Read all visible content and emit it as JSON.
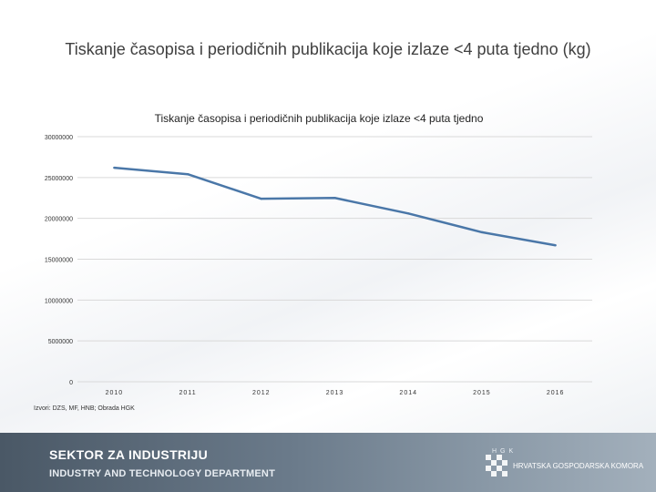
{
  "slide": {
    "title": "Tiskanje časopisa i periodičnih publikacija koje izlaze <4 puta tjedno (kg)",
    "source": "Izvori: DZS, MF, HNB; Obrada HGK"
  },
  "footer": {
    "line1": "SEKTOR ZA INDUSTRIJU",
    "line2": "INDUSTRY AND TECHNOLOGY DEPARTMENT",
    "logo_letters": "HGK",
    "logo_text": "HRVATSKA GOSPODARSKA KOMORA"
  },
  "colors": {
    "series": "#4a77a8",
    "grid": "#d9d9d9"
  },
  "chart_data": {
    "type": "line",
    "title": "Tiskanje časopisa i periodičnih publikacija koje izlaze <4 puta tjedno",
    "categories": [
      "2010",
      "2011",
      "2012",
      "2013",
      "2014",
      "2015",
      "2016"
    ],
    "series": [
      {
        "values": [
          26200000,
          25400000,
          22400000,
          22500000,
          20600000,
          18300000,
          16700000
        ]
      }
    ],
    "yticks": [
      0,
      5000000,
      10000000,
      15000000,
      20000000,
      25000000,
      30000000
    ],
    "ytick_labels": [
      "0",
      "5000000",
      "10000000",
      "15000000",
      "20000000",
      "25000000",
      "30000000"
    ],
    "ylim": [
      0,
      30000000
    ],
    "xlabel": "",
    "ylabel": "",
    "grid": true,
    "legend": "none"
  }
}
